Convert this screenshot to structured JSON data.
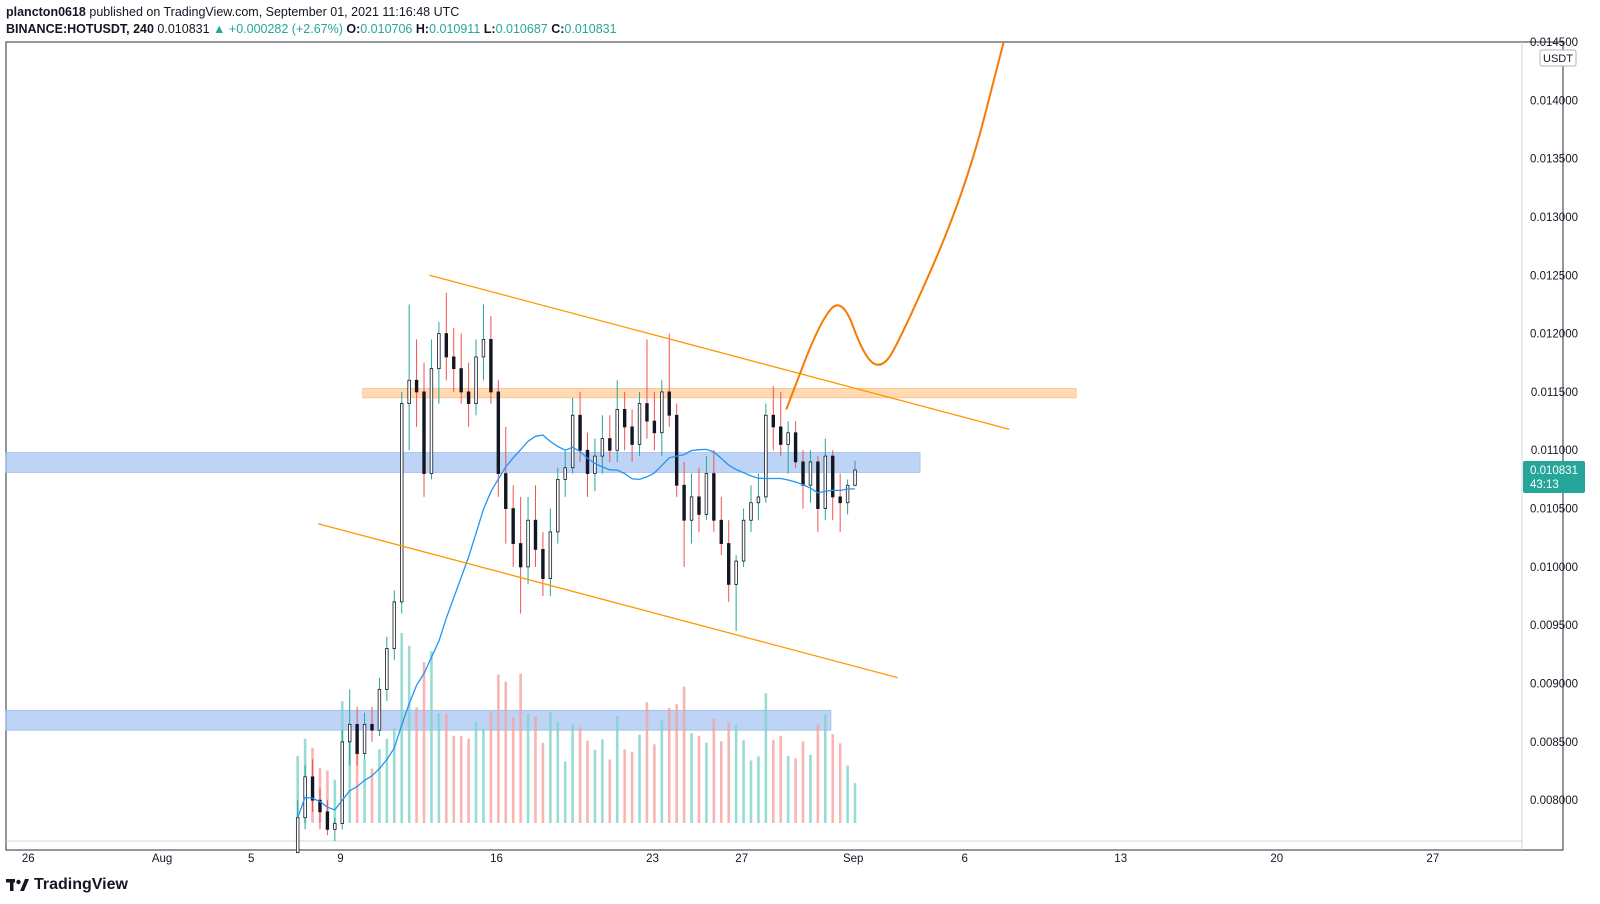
{
  "header": {
    "author": "plancton0618",
    "published": "published on TradingView.com, September 01, 2021 11:16:48 UTC",
    "symbol": "BINANCE:HOTUSDT, 240",
    "last": "0.010831",
    "change": "▲ +0.000282 (+2.67%)",
    "o_label": "O:",
    "o_value": "0.010706",
    "h_label": "H:",
    "h_value": "0.010911",
    "l_label": "L:",
    "l_value": "0.010687",
    "c_label": "C:",
    "c_value": "0.010831"
  },
  "footer": {
    "brand": "TradingView"
  },
  "colors": {
    "up": "#26a69a",
    "down": "#ef5350",
    "ma": "#2196f3",
    "trend": "#ff9800",
    "projection": "#f57c00",
    "zone_blue": "#b3cdf5",
    "zone_orange": "#ffd4a8",
    "price_tag": "#26a69a"
  },
  "chart_data": {
    "type": "candlestick",
    "symbol": "BINANCE:HOTUSDT",
    "interval": "240",
    "y_axis": {
      "unit": "USDT",
      "ticks": [
        "0.014500",
        "0.014000",
        "0.013500",
        "0.013000",
        "0.012500",
        "0.012000",
        "0.011500",
        "0.011000",
        "0.010500",
        "0.010000",
        "0.009500",
        "0.009000",
        "0.008500",
        "0.008000"
      ],
      "range": [
        0.00765,
        0.0145
      ]
    },
    "x_axis": {
      "ticks": [
        "26",
        "Aug",
        "5",
        "9",
        "16",
        "23",
        "27",
        "Sep",
        "6",
        "13",
        "20",
        "27"
      ],
      "range": [
        "2021-07-25",
        "2021-10-01"
      ]
    },
    "last_price": {
      "value": "0.010831",
      "countdown": "43:13"
    },
    "zones": [
      {
        "name": "resistance-orange",
        "from": "2021-08-10",
        "to": "2021-09-11",
        "low": 0.01145,
        "high": 0.01153,
        "color": "orange"
      },
      {
        "name": "support-blue-upper",
        "from": "2021-07-25",
        "to": "2021-09-04",
        "low": 0.01081,
        "high": 0.01098,
        "color": "blue"
      },
      {
        "name": "support-blue-lower",
        "from": "2021-07-25",
        "to": "2021-08-31",
        "low": 0.0086,
        "high": 0.00877,
        "color": "blue"
      }
    ],
    "trendlines": [
      {
        "name": "channel-top",
        "from": [
          "2021-08-13T00:00",
          0.0125
        ],
        "to": [
          "2021-09-08T00:00",
          0.01118
        ]
      },
      {
        "name": "channel-bottom",
        "from": [
          "2021-08-08T00:00",
          0.01037
        ],
        "to": [
          "2021-09-03T00:00",
          0.00905
        ]
      }
    ],
    "projection": [
      [
        "2021-08-29T00:00",
        0.01135
      ],
      [
        "2021-08-30T12:00",
        0.0121
      ],
      [
        "2021-08-31T12:00",
        0.01232
      ],
      [
        "2021-09-01T12:00",
        0.0118
      ],
      [
        "2021-09-02T06:00",
        0.0117
      ],
      [
        "2021-09-03T00:00",
        0.0119
      ],
      [
        "2021-09-06T00:00",
        0.0132
      ],
      [
        "2021-09-07T18:00",
        0.0145
      ]
    ],
    "candles": [
      [
        "2021-08-07T00:00",
        0.00755,
        0.008,
        0.00755,
        0.00785
      ],
      [
        "2021-08-07T08:00",
        0.00785,
        0.0083,
        0.00775,
        0.0082
      ],
      [
        "2021-08-07T16:00",
        0.0082,
        0.00835,
        0.0079,
        0.008
      ],
      [
        "2021-08-08T00:00",
        0.008,
        0.0081,
        0.00775,
        0.0079
      ],
      [
        "2021-08-08T08:00",
        0.0079,
        0.008,
        0.0077,
        0.00775
      ],
      [
        "2021-08-08T16:00",
        0.00775,
        0.00785,
        0.00765,
        0.0078
      ],
      [
        "2021-08-09T00:00",
        0.0078,
        0.0086,
        0.00775,
        0.0085
      ],
      [
        "2021-08-09T08:00",
        0.0085,
        0.00895,
        0.0083,
        0.00865
      ],
      [
        "2021-08-09T16:00",
        0.00865,
        0.0088,
        0.0083,
        0.0084
      ],
      [
        "2021-08-10T00:00",
        0.0084,
        0.00875,
        0.00835,
        0.00865
      ],
      [
        "2021-08-10T08:00",
        0.00865,
        0.0088,
        0.0085,
        0.0086
      ],
      [
        "2021-08-10T16:00",
        0.0086,
        0.00905,
        0.00855,
        0.00895
      ],
      [
        "2021-08-11T00:00",
        0.00895,
        0.0094,
        0.00885,
        0.0093
      ],
      [
        "2021-08-11T08:00",
        0.0093,
        0.0098,
        0.0092,
        0.0097
      ],
      [
        "2021-08-11T16:00",
        0.0097,
        0.0115,
        0.0096,
        0.0114
      ],
      [
        "2021-08-12T00:00",
        0.0114,
        0.01225,
        0.011,
        0.0116
      ],
      [
        "2021-08-12T08:00",
        0.0116,
        0.01195,
        0.0112,
        0.0115
      ],
      [
        "2021-08-12T16:00",
        0.0115,
        0.01175,
        0.0106,
        0.0108
      ],
      [
        "2021-08-13T00:00",
        0.0108,
        0.01195,
        0.01075,
        0.0117
      ],
      [
        "2021-08-13T08:00",
        0.0117,
        0.0121,
        0.0114,
        0.012
      ],
      [
        "2021-08-13T16:00",
        0.012,
        0.01235,
        0.0116,
        0.0118
      ],
      [
        "2021-08-14T00:00",
        0.0118,
        0.01205,
        0.0115,
        0.0117
      ],
      [
        "2021-08-14T08:00",
        0.0117,
        0.012,
        0.0114,
        0.0115
      ],
      [
        "2021-08-14T16:00",
        0.0115,
        0.01175,
        0.0112,
        0.0114
      ],
      [
        "2021-08-15T00:00",
        0.0114,
        0.01195,
        0.0113,
        0.0118
      ],
      [
        "2021-08-15T08:00",
        0.0118,
        0.01225,
        0.0116,
        0.01195
      ],
      [
        "2021-08-15T16:00",
        0.01195,
        0.01215,
        0.0114,
        0.0115
      ],
      [
        "2021-08-16T00:00",
        0.0115,
        0.0116,
        0.0106,
        0.0108
      ],
      [
        "2021-08-16T08:00",
        0.0108,
        0.0112,
        0.0102,
        0.0105
      ],
      [
        "2021-08-16T16:00",
        0.0105,
        0.0107,
        0.01,
        0.0102
      ],
      [
        "2021-08-17T00:00",
        0.0102,
        0.0106,
        0.0096,
        0.01
      ],
      [
        "2021-08-17T08:00",
        0.01,
        0.0106,
        0.00985,
        0.0104
      ],
      [
        "2021-08-17T16:00",
        0.0104,
        0.0107,
        0.01,
        0.01015
      ],
      [
        "2021-08-18T00:00",
        0.01015,
        0.0103,
        0.00975,
        0.0099
      ],
      [
        "2021-08-18T08:00",
        0.0099,
        0.0105,
        0.00975,
        0.0103
      ],
      [
        "2021-08-18T16:00",
        0.0103,
        0.01085,
        0.0102,
        0.01075
      ],
      [
        "2021-08-19T00:00",
        0.01075,
        0.011,
        0.0106,
        0.01085
      ],
      [
        "2021-08-19T08:00",
        0.01085,
        0.01145,
        0.0108,
        0.0113
      ],
      [
        "2021-08-19T16:00",
        0.0113,
        0.0115,
        0.0109,
        0.011
      ],
      [
        "2021-08-20T00:00",
        0.011,
        0.01115,
        0.0106,
        0.0108
      ],
      [
        "2021-08-20T08:00",
        0.0108,
        0.0111,
        0.01065,
        0.01095
      ],
      [
        "2021-08-20T16:00",
        0.01095,
        0.0113,
        0.0108,
        0.0111
      ],
      [
        "2021-08-21T00:00",
        0.0111,
        0.0113,
        0.0109,
        0.011
      ],
      [
        "2021-08-21T08:00",
        0.011,
        0.0116,
        0.0109,
        0.01135
      ],
      [
        "2021-08-21T16:00",
        0.01135,
        0.0115,
        0.011,
        0.0112
      ],
      [
        "2021-08-22T00:00",
        0.0112,
        0.01135,
        0.0109,
        0.01105
      ],
      [
        "2021-08-22T08:00",
        0.01105,
        0.0115,
        0.01095,
        0.0114
      ],
      [
        "2021-08-22T16:00",
        0.0114,
        0.01195,
        0.0111,
        0.01125
      ],
      [
        "2021-08-23T00:00",
        0.01125,
        0.0115,
        0.011,
        0.01115
      ],
      [
        "2021-08-23T08:00",
        0.01115,
        0.0116,
        0.01095,
        0.0115
      ],
      [
        "2021-08-23T16:00",
        0.0115,
        0.012,
        0.0112,
        0.0113
      ],
      [
        "2021-08-24T00:00",
        0.0113,
        0.0114,
        0.0106,
        0.0107
      ],
      [
        "2021-08-24T08:00",
        0.0107,
        0.0109,
        0.01,
        0.0104
      ],
      [
        "2021-08-24T16:00",
        0.0104,
        0.0108,
        0.0102,
        0.0106
      ],
      [
        "2021-08-25T00:00",
        0.0106,
        0.01085,
        0.0103,
        0.01045
      ],
      [
        "2021-08-25T08:00",
        0.01045,
        0.01095,
        0.0104,
        0.0108
      ],
      [
        "2021-08-25T16:00",
        0.0108,
        0.011,
        0.0103,
        0.0104
      ],
      [
        "2021-08-26T00:00",
        0.0104,
        0.0106,
        0.0101,
        0.0102
      ],
      [
        "2021-08-26T08:00",
        0.0102,
        0.0104,
        0.0097,
        0.00985
      ],
      [
        "2021-08-26T16:00",
        0.00985,
        0.0101,
        0.00945,
        0.01005
      ],
      [
        "2021-08-27T00:00",
        0.01005,
        0.0105,
        0.01,
        0.0104
      ],
      [
        "2021-08-27T08:00",
        0.0104,
        0.0107,
        0.0103,
        0.01055
      ],
      [
        "2021-08-27T16:00",
        0.01055,
        0.0108,
        0.0104,
        0.0106
      ],
      [
        "2021-08-28T00:00",
        0.0106,
        0.0114,
        0.01055,
        0.0113
      ],
      [
        "2021-08-28T08:00",
        0.0113,
        0.01155,
        0.011,
        0.0112
      ],
      [
        "2021-08-28T16:00",
        0.0112,
        0.0115,
        0.01095,
        0.01105
      ],
      [
        "2021-08-29T00:00",
        0.01105,
        0.01125,
        0.0108,
        0.01115
      ],
      [
        "2021-08-29T08:00",
        0.01115,
        0.01125,
        0.01085,
        0.0109
      ],
      [
        "2021-08-29T16:00",
        0.0109,
        0.011,
        0.0105,
        0.0107
      ],
      [
        "2021-08-30T00:00",
        0.0107,
        0.011,
        0.01055,
        0.0109
      ],
      [
        "2021-08-30T08:00",
        0.0109,
        0.01095,
        0.0103,
        0.0105
      ],
      [
        "2021-08-30T16:00",
        0.0105,
        0.0111,
        0.0104,
        0.01095
      ],
      [
        "2021-08-31T00:00",
        0.01095,
        0.011,
        0.0104,
        0.0106
      ],
      [
        "2021-08-31T08:00",
        0.0106,
        0.0108,
        0.0103,
        0.01055
      ],
      [
        "2021-08-31T16:00",
        0.01055,
        0.01075,
        0.01045,
        0.0107
      ],
      [
        "2021-09-01T00:00",
        0.0107,
        0.01091,
        0.01069,
        0.01083
      ]
    ]
  }
}
